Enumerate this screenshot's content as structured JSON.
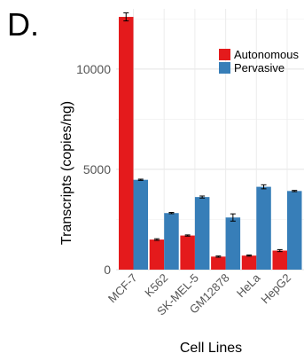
{
  "panel_label": "D.",
  "chart_data": {
    "type": "bar",
    "xlabel": "Cell Lines",
    "ylabel": "Transcripts (copies/ng)",
    "categories": [
      "MCF-7",
      "K562",
      "SK-MEL-5",
      "GM12878",
      "HeLa",
      "HepG2"
    ],
    "series": [
      {
        "name": "Autonomous",
        "color": "#e41a1c",
        "values": [
          12600,
          1500,
          1700,
          650,
          700,
          950
        ],
        "errors": [
          200,
          40,
          30,
          30,
          30,
          50
        ]
      },
      {
        "name": "Pervasive",
        "color": "#377eb8",
        "values": [
          4480,
          2820,
          3620,
          2600,
          4130,
          3920
        ],
        "errors": [
          30,
          30,
          50,
          180,
          100,
          30
        ]
      }
    ],
    "ylim": [
      0,
      13000
    ],
    "yticks": [
      0,
      5000,
      10000
    ],
    "grid": true,
    "legend_position": "top-right"
  }
}
